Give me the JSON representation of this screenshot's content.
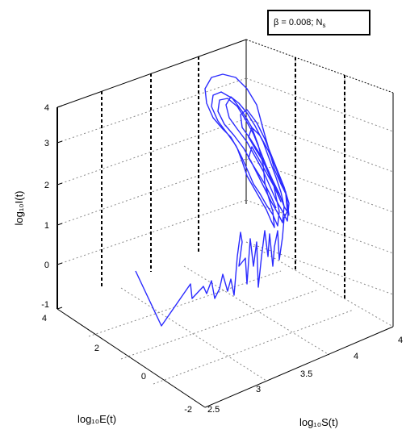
{
  "legend": {
    "text": "β = 0.008; N",
    "subscript": "s"
  },
  "chart_data": {
    "type": "line3d",
    "xlabel": "log₁₀S(t)",
    "ylabel": "log₁₀E(t)",
    "zlabel": "log₁₀I(t)",
    "x_ticks": [
      "2.5",
      "3",
      "3.5",
      "4"
    ],
    "y_ticks": [
      "-2",
      "0",
      "2",
      "4"
    ],
    "z_ticks": [
      "-1",
      "0",
      "1",
      "2",
      "3",
      "4"
    ],
    "xlim": [
      2.5,
      4
    ],
    "ylim": [
      -2,
      4
    ],
    "zlim": [
      -1,
      4
    ],
    "grid": true,
    "series_color": "#2b2bff",
    "legend_position": "top-right"
  }
}
